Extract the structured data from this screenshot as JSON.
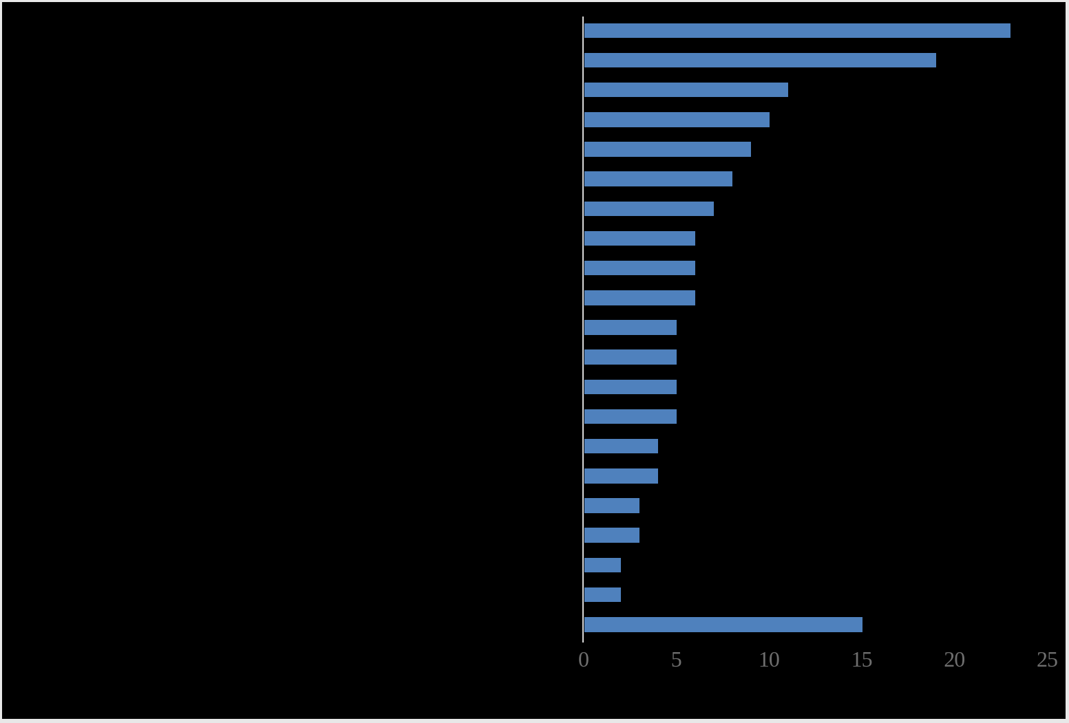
{
  "chart_data": {
    "type": "bar",
    "orientation": "horizontal",
    "title": "",
    "xlabel": "",
    "ylabel": "",
    "values": [
      23,
      19,
      11,
      10,
      9,
      8,
      7,
      6,
      6,
      6,
      5,
      5,
      5,
      5,
      4,
      4,
      3,
      3,
      2,
      2,
      15
    ],
    "category_labels_visible": false,
    "x_ticks": [
      "0",
      "5",
      "10",
      "15",
      "20",
      "25"
    ],
    "x_tick_values": [
      0,
      5,
      10,
      15,
      20,
      25
    ],
    "xlim": [
      0,
      25
    ],
    "grid": false,
    "legend": false,
    "bar_color": "#4F81BD",
    "axis_line_color": "#D9D9D9",
    "tick_label_color": "#6e6e6e",
    "plot_background": "#000000",
    "page_edge_color": "#e8e8e8"
  }
}
